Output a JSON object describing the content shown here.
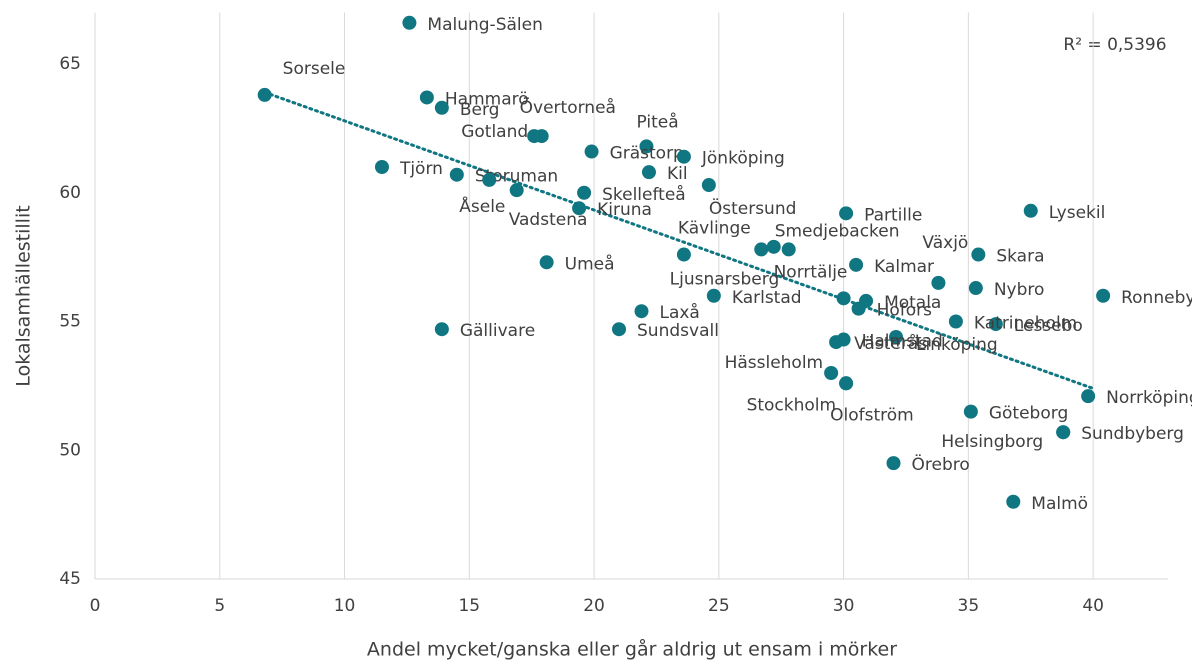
{
  "chart_data": {
    "type": "scatter",
    "x_label": "Andel mycket/ganska eller går aldrig ut ensam i mörker",
    "y_label": "Lokalsamhällestillit",
    "annotation": "R² = 0,5396",
    "color": "#0f7682",
    "labels": [
      "Malung-Sälen",
      "Sorsele",
      "Hammarö",
      "Berg",
      "Gotland",
      "Övertorneå",
      "Piteå",
      "Grästorp",
      "Jönköping",
      "Kil",
      "Tjörn",
      "Storuman",
      "Åsele",
      "Vadstena",
      "Skellefteå",
      "Kiruna",
      "Östersund",
      "Partille",
      "Lysekil",
      "Kävlinge",
      "Ljusnarsberg",
      null,
      "Smedjebacken",
      "Växjö",
      "Skara",
      "Umeå",
      "Kalmar",
      "Nybro",
      "Ronneby",
      "Karlstad",
      "Norrtälje",
      "Motala",
      "Hofors",
      "Laxå",
      "Lessebo",
      "Katrineholm",
      "Gällivare",
      "Sundsvall",
      "Linköping",
      "Halmstad",
      "Västerås",
      "Hässleholm",
      "Stockholm",
      "Olofström",
      "Göteborg",
      "Norrköping",
      "Sundbyberg",
      "Helsingborg",
      "Örebro",
      "Malmö"
    ],
    "x": [
      12.6,
      6.8,
      13.3,
      13.9,
      17.6,
      17.9,
      22.1,
      19.9,
      23.6,
      22.2,
      11.5,
      14.5,
      15.8,
      16.9,
      19.6,
      19.4,
      24.6,
      30.1,
      37.5,
      23.6,
      26.7,
      27.2,
      27.8,
      33.8,
      35.4,
      18.1,
      30.5,
      35.3,
      40.4,
      24.8,
      30.0,
      30.9,
      30.6,
      21.9,
      36.1,
      34.5,
      13.9,
      21.0,
      32.1,
      30.0,
      29.7,
      29.5,
      30.1,
      30.1,
      35.1,
      39.8,
      38.8,
      38.8,
      32.0,
      36.8
    ],
    "values": [
      66.6,
      63.8,
      63.7,
      63.3,
      62.2,
      62.2,
      61.8,
      61.6,
      61.4,
      60.8,
      61.0,
      60.7,
      60.5,
      60.1,
      60.0,
      59.4,
      60.3,
      59.2,
      59.3,
      57.6,
      57.8,
      57.9,
      57.8,
      56.5,
      57.6,
      57.3,
      57.2,
      56.3,
      56.0,
      56.0,
      55.9,
      55.8,
      55.5,
      55.4,
      54.9,
      55.0,
      54.7,
      54.7,
      54.4,
      54.3,
      54.2,
      53.0,
      52.6,
      52.6,
      51.5,
      52.1,
      50.7,
      50.7,
      49.5,
      48.0
    ],
    "trendline": {
      "color": "#0f7682",
      "x": [
        6.8,
        40
      ],
      "values": [
        63.9,
        52.4
      ]
    },
    "xlim": [
      0,
      43
    ],
    "xticks": [
      0,
      5,
      10,
      15,
      20,
      25,
      30,
      35,
      40
    ],
    "ylim": [
      45,
      67
    ],
    "yticks": [
      45,
      50,
      55,
      60,
      65
    ],
    "grid": "x"
  }
}
